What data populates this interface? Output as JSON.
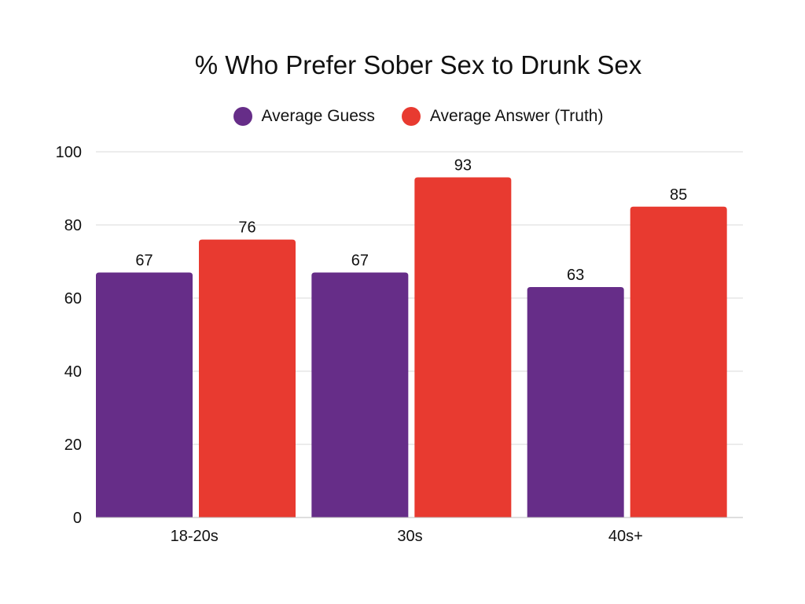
{
  "chart_data": {
    "type": "bar",
    "title": "% Who Prefer Sober Sex to Drunk Sex",
    "categories": [
      "18-20s",
      "30s",
      "40s+"
    ],
    "series": [
      {
        "name": "Average Guess",
        "values": [
          67,
          67,
          63
        ],
        "color": "#662D88"
      },
      {
        "name": "Average Answer (Truth)",
        "values": [
          76,
          93,
          85
        ],
        "color": "#E83A30"
      }
    ],
    "ylim": [
      0,
      100
    ],
    "yticks": [
      "0",
      "20",
      "40",
      "60",
      "80",
      "100"
    ],
    "grid": true,
    "legend_position": "top-center"
  }
}
